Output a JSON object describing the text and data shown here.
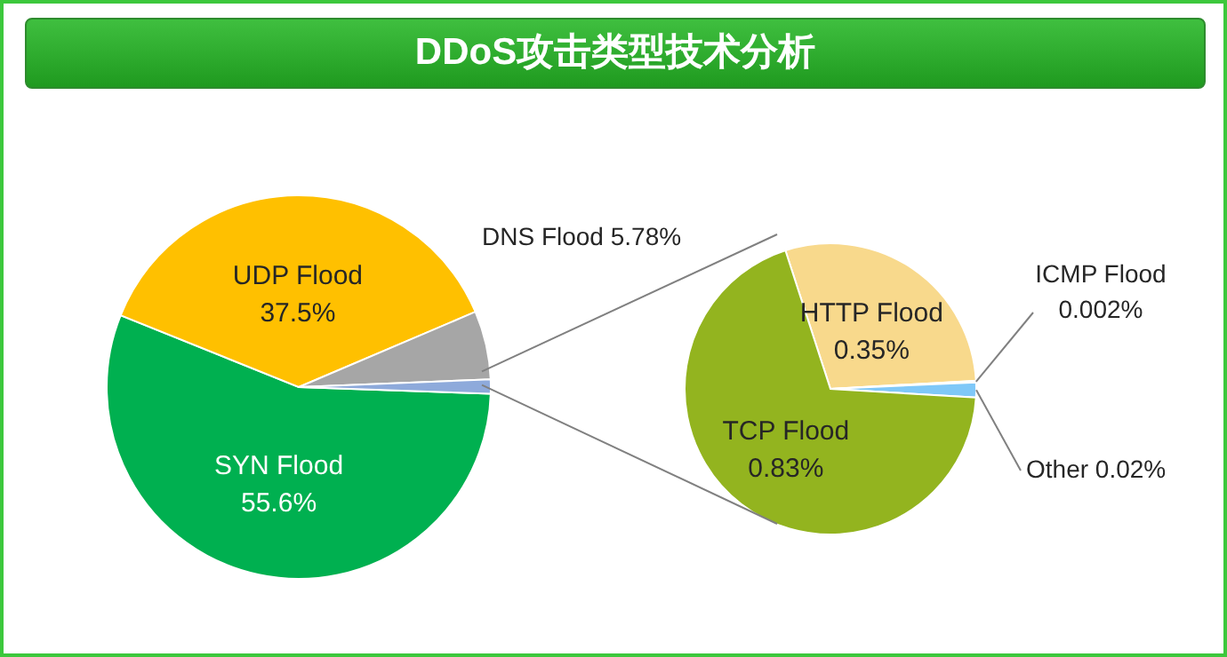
{
  "chart_data": [
    {
      "type": "pie",
      "title": "DDoS攻击类型技术分析",
      "categories": [
        "SYN Flood",
        "UDP Flood",
        "DNS Flood",
        null
      ],
      "values": [
        55.6,
        37.5,
        5.78,
        1.202
      ],
      "colors": [
        "#00b050",
        "#ffc000",
        "#a6a6a6",
        "#8eaadb"
      ],
      "value_labels": [
        "55.6%",
        "37.5%",
        "5.78%",
        null
      ]
    },
    {
      "type": "pie",
      "categories": [
        "HTTP Flood",
        "ICMP Flood",
        "Other",
        "TCP Flood"
      ],
      "values": [
        0.35,
        0.002,
        0.02,
        0.83
      ],
      "colors": [
        "#f8d98c",
        "#5b9bd5",
        "#7fc8f8",
        "#93b41f"
      ],
      "value_labels": [
        "0.35%",
        "0.002%",
        "0.02%",
        "0.83%"
      ]
    }
  ]
}
